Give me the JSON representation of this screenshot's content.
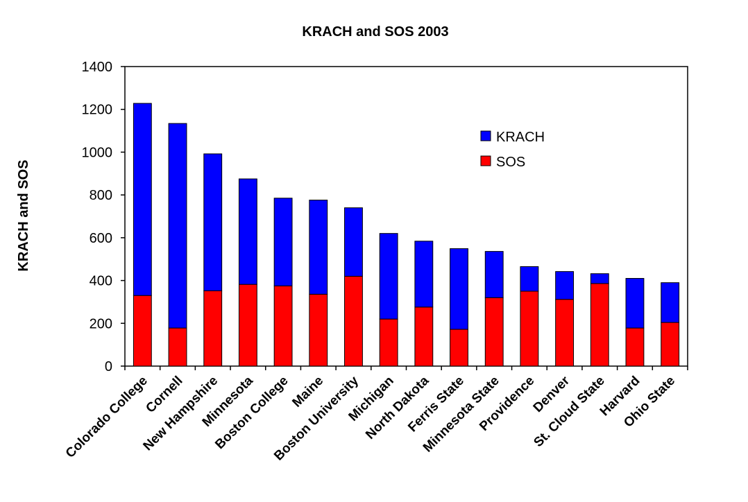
{
  "chart_data": {
    "type": "bar",
    "stacked": true,
    "title": "KRACH and SOS 2003",
    "xlabel": "",
    "ylabel": "KRACH and SOS",
    "ylim": [
      0,
      1400
    ],
    "yticks": [
      0,
      200,
      400,
      600,
      800,
      1000,
      1200,
      1400
    ],
    "grid": false,
    "legend_position": "upper-right-inside",
    "categories": [
      "Colorado College",
      "Cornell",
      "New Hampshire",
      "Minnesota",
      "Boston College",
      "Maine",
      "Boston University",
      "Michigan",
      "North Dakota",
      "Ferris State",
      "Minnesota State",
      "Providence",
      "Denver",
      "St. Cloud State",
      "Harvard",
      "Ohio State"
    ],
    "series": [
      {
        "name": "SOS",
        "color": "#ff0000",
        "values": [
          330,
          178,
          352,
          382,
          375,
          336,
          420,
          220,
          276,
          172,
          320,
          350,
          312,
          386,
          178,
          204
        ]
      },
      {
        "name": "KRACH",
        "color": "#0000ff",
        "values": [
          898,
          956,
          640,
          493,
          410,
          440,
          320,
          400,
          308,
          377,
          216,
          115,
          130,
          46,
          232,
          186
        ]
      }
    ],
    "legend": [
      "KRACH",
      "SOS"
    ]
  }
}
